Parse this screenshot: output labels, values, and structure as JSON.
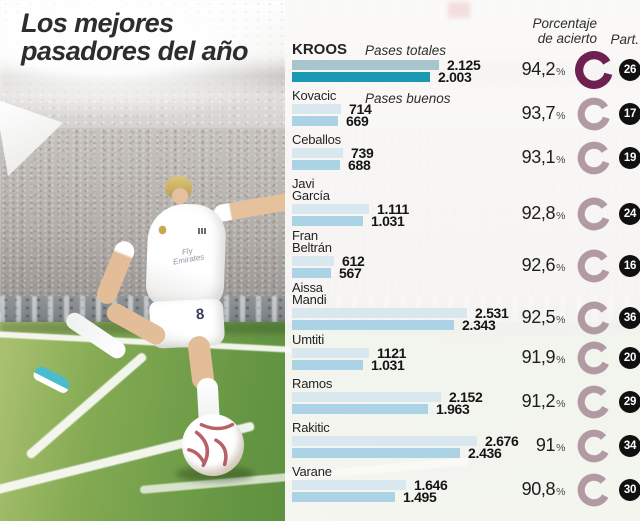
{
  "title": {
    "line1": "Los mejores",
    "line2": "pasadores del año"
  },
  "headers": {
    "porcentaje_line1": "Porcentaje",
    "porcentaje_line2": "de acierto",
    "part": "Part."
  },
  "photo": {
    "shirt_sponsor": "Fly Emirates",
    "shorts_number": "8"
  },
  "colors": {
    "bar_totales": "#d9e8ee",
    "bar_buenos": "#abd2e5",
    "bar_totales_highlight": "#a7c5cd",
    "bar_buenos_highlight": "#1a99b4",
    "ring": "#b29aa4",
    "ring_highlight": "#6e2150",
    "badge_bg": "#101010",
    "badge_text": "#ffffff",
    "accent_red": "#c13d3d"
  },
  "chart_data": {
    "type": "bar",
    "orientation": "horizontal",
    "title": "Los mejores pasadores del año",
    "percent_sign": "%",
    "series_names": [
      "Pases totales",
      "Pases buenos"
    ],
    "categories": [
      "Kroos",
      "Kovacic",
      "Ceballos",
      "Javi García",
      "Fran Beltrán",
      "Aissa Mandi",
      "Umtiti",
      "Ramos",
      "Rakitic",
      "Varane"
    ],
    "series": [
      {
        "name": "Pases totales",
        "values": [
          2125,
          714,
          739,
          1111,
          612,
          2531,
          1121,
          2152,
          2676,
          1646
        ]
      },
      {
        "name": "Pases buenos",
        "values": [
          2003,
          669,
          688,
          1031,
          567,
          2343,
          1031,
          1963,
          2436,
          1495
        ]
      }
    ],
    "pct_acierto": [
      94.2,
      93.7,
      93.1,
      92.8,
      92.6,
      92.5,
      91.9,
      91.2,
      91,
      90.8
    ],
    "partidos": [
      26,
      17,
      19,
      24,
      16,
      36,
      20,
      29,
      34,
      30
    ],
    "players": [
      {
        "name_lines": [
          "KROOS"
        ],
        "highlight": true,
        "note": "Pases totales",
        "totales": 2125,
        "totales_label": "2.125",
        "buenos": 2003,
        "buenos_label": "2.003",
        "pct": 94.2,
        "pct_label": "94,2",
        "part": "26"
      },
      {
        "name_lines": [
          "Kovacic"
        ],
        "note": "Pases buenos",
        "totales": 714,
        "totales_label": "714",
        "buenos": 669,
        "buenos_label": "669",
        "pct": 93.7,
        "pct_label": "93,7",
        "part": "17"
      },
      {
        "name_lines": [
          "Ceballos"
        ],
        "totales": 739,
        "totales_label": "739",
        "buenos": 688,
        "buenos_label": "688",
        "pct": 93.1,
        "pct_label": "93,1",
        "part": "19"
      },
      {
        "name_lines": [
          "Javi",
          "García"
        ],
        "totales": 1111,
        "totales_label": "1.111",
        "buenos": 1031,
        "buenos_label": "1.031",
        "pct": 92.8,
        "pct_label": "92,8",
        "part": "24"
      },
      {
        "name_lines": [
          "Fran",
          "Beltrán"
        ],
        "totales": 612,
        "totales_label": "612",
        "buenos": 567,
        "buenos_label": "567",
        "pct": 92.6,
        "pct_label": "92,6",
        "part": "16"
      },
      {
        "name_lines": [
          "Aissa",
          "Mandi"
        ],
        "totales": 2531,
        "totales_label": "2.531",
        "buenos": 2343,
        "buenos_label": "2.343",
        "pct": 92.5,
        "pct_label": "92,5",
        "part": "36"
      },
      {
        "name_lines": [
          "Umtiti"
        ],
        "totales": 1121,
        "totales_label": "1121",
        "buenos": 1031,
        "buenos_label": "1.031",
        "pct": 91.9,
        "pct_label": "91,9",
        "part": "20"
      },
      {
        "name_lines": [
          "Ramos"
        ],
        "totales": 2152,
        "totales_label": "2.152",
        "buenos": 1963,
        "buenos_label": "1.963",
        "pct": 91.2,
        "pct_label": "91,2",
        "part": "29"
      },
      {
        "name_lines": [
          "Rakitic"
        ],
        "totales": 2676,
        "totales_label": "2.676",
        "buenos": 2436,
        "buenos_label": "2.436",
        "pct": 91,
        "pct_label": "91",
        "part": "34"
      },
      {
        "name_lines": [
          "Varane"
        ],
        "totales": 1646,
        "totales_label": "1.646",
        "buenos": 1495,
        "buenos_label": "1.495",
        "pct": 90.8,
        "pct_label": "90,8",
        "part": "30"
      }
    ]
  }
}
